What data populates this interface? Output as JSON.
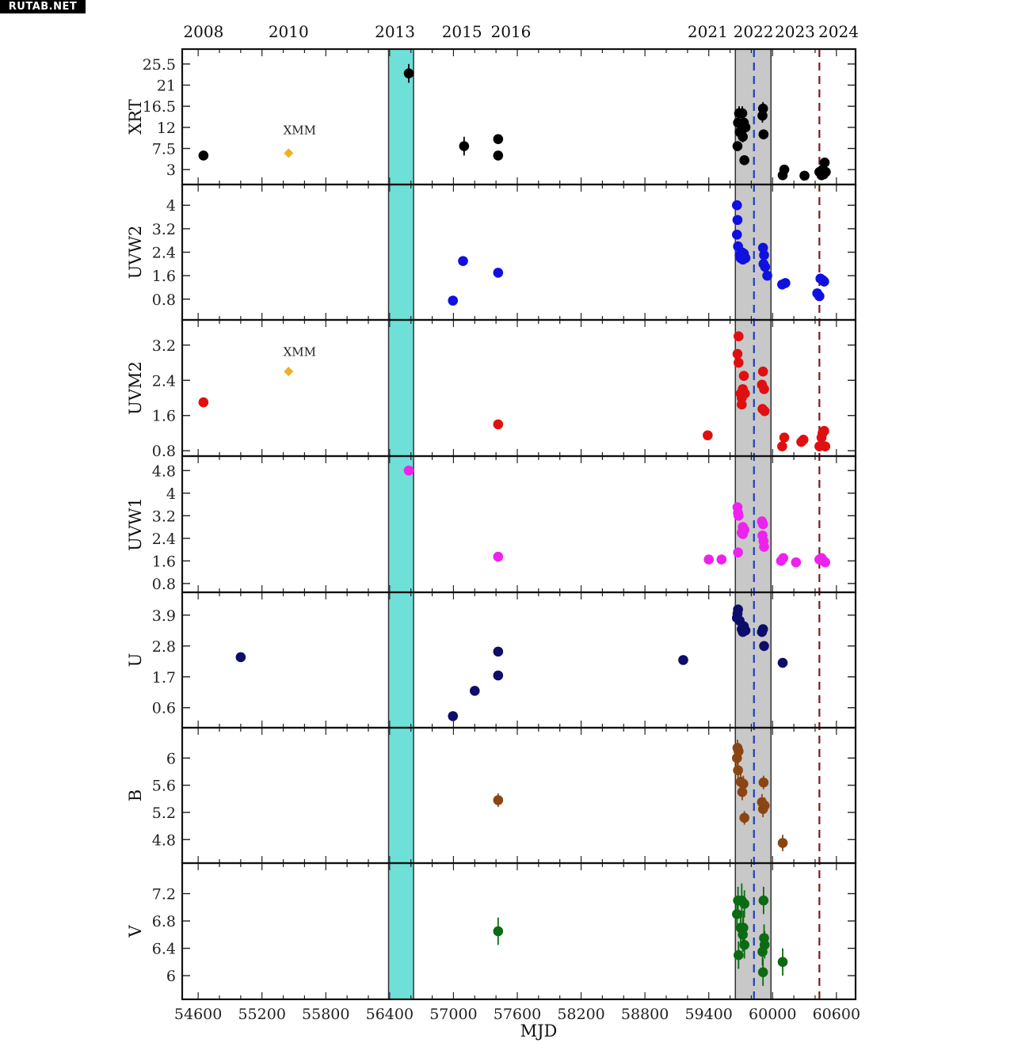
{
  "watermark": "RUTAB.NET",
  "chart_data": {
    "type": "scatter",
    "xlabel": "MJD",
    "xlim": [
      54450,
      60780
    ],
    "x_ticks": [
      54600,
      55200,
      55800,
      56400,
      57000,
      57600,
      58200,
      58800,
      59400,
      60000,
      60600
    ],
    "year_labels": [
      {
        "label": "2008",
        "mjd": 54650
      },
      {
        "label": "2010",
        "mjd": 55450
      },
      {
        "label": "2013",
        "mjd": 56450
      },
      {
        "label": "2015",
        "mjd": 57080
      },
      {
        "label": "2016",
        "mjd": 57540
      },
      {
        "label": "2021",
        "mjd": 59390
      },
      {
        "label": "2022",
        "mjd": 59820
      },
      {
        "label": "2023",
        "mjd": 60210
      },
      {
        "label": "2024",
        "mjd": 60620
      }
    ],
    "shaded_regions": [
      {
        "x0": 56390,
        "x1": 56625,
        "color": "#6ee0d8"
      },
      {
        "x0": 59650,
        "x1": 59985,
        "color": "#c8c8c8"
      }
    ],
    "vertical_lines": [
      {
        "x": 59825,
        "color": "#1f3fbf",
        "style": "dashed"
      },
      {
        "x": 60440,
        "color": "#7a1b1b",
        "style": "dashed"
      }
    ],
    "panels": [
      {
        "label": "XRT",
        "color": "#000000",
        "ylim": [
          0.5,
          28
        ],
        "yticks": [
          3,
          7.5,
          12,
          16.5,
          21,
          25.5
        ],
        "annotations": [
          {
            "text": "XMM",
            "x": 55450,
            "y": 10.5
          }
        ],
        "points": [
          {
            "x": 54650,
            "y": 6.0
          },
          {
            "x": 57100,
            "y": 8.0,
            "err": 2.0
          },
          {
            "x": 57420,
            "y": 9.5,
            "err": 1.0
          },
          {
            "x": 57420,
            "y": 6.0,
            "err": 0.7
          },
          {
            "x": 56580,
            "y": 23.5,
            "err": 2.0
          },
          {
            "x": 59670,
            "y": 8.0,
            "err": 1.0
          },
          {
            "x": 59675,
            "y": 13.0,
            "err": 1.3
          },
          {
            "x": 59685,
            "y": 15.0,
            "err": 1.5
          },
          {
            "x": 59690,
            "y": 11.0,
            "err": 1.2
          },
          {
            "x": 59705,
            "y": 12.5,
            "err": 1.3
          },
          {
            "x": 59715,
            "y": 15.0,
            "err": 1.5
          },
          {
            "x": 59720,
            "y": 10.0,
            "err": 1.2
          },
          {
            "x": 59730,
            "y": 13.0,
            "err": 1.4
          },
          {
            "x": 59735,
            "y": 5.0,
            "err": 1.0
          },
          {
            "x": 59745,
            "y": 12.0,
            "err": 1.3
          },
          {
            "x": 59905,
            "y": 14.5,
            "err": 1.5
          },
          {
            "x": 59910,
            "y": 16.0,
            "err": 1.4
          },
          {
            "x": 59915,
            "y": 10.5,
            "err": 1.0
          },
          {
            "x": 60095,
            "y": 1.8,
            "err": 0.4
          },
          {
            "x": 60110,
            "y": 3.0,
            "err": 0.5
          },
          {
            "x": 60300,
            "y": 1.7,
            "err": 0.3
          },
          {
            "x": 60440,
            "y": 2.5,
            "err": 0.6
          },
          {
            "x": 60460,
            "y": 1.8,
            "err": 0.4
          },
          {
            "x": 60470,
            "y": 3.0,
            "err": 0.5
          },
          {
            "x": 60480,
            "y": 2.0,
            "err": 0.4
          },
          {
            "x": 60490,
            "y": 4.5,
            "err": 0.6
          },
          {
            "x": 60500,
            "y": 2.5,
            "err": 0.5
          }
        ],
        "extra_points": [
          {
            "x": 55450,
            "y": 6.5,
            "color": "#f0b020",
            "marker": "diamond"
          }
        ]
      },
      {
        "label": "UVW2",
        "color": "#1010e0",
        "ylim": [
          0.2,
          4.6
        ],
        "yticks": [
          0.8,
          1.6,
          2.4,
          3.2,
          4
        ],
        "points": [
          {
            "x": 56995,
            "y": 0.75
          },
          {
            "x": 57090,
            "y": 2.1
          },
          {
            "x": 57420,
            "y": 1.7
          },
          {
            "x": 59665,
            "y": 4.0
          },
          {
            "x": 59670,
            "y": 3.5
          },
          {
            "x": 59665,
            "y": 3.0
          },
          {
            "x": 59675,
            "y": 2.6
          },
          {
            "x": 59690,
            "y": 2.3
          },
          {
            "x": 59700,
            "y": 2.2
          },
          {
            "x": 59710,
            "y": 2.4
          },
          {
            "x": 59720,
            "y": 2.15
          },
          {
            "x": 59730,
            "y": 2.35
          },
          {
            "x": 59745,
            "y": 2.2
          },
          {
            "x": 59910,
            "y": 2.55
          },
          {
            "x": 59915,
            "y": 2.0
          },
          {
            "x": 59920,
            "y": 2.3
          },
          {
            "x": 59930,
            "y": 1.9
          },
          {
            "x": 59950,
            "y": 1.6
          },
          {
            "x": 60090,
            "y": 1.3
          },
          {
            "x": 60120,
            "y": 1.35
          },
          {
            "x": 60420,
            "y": 1.0
          },
          {
            "x": 60440,
            "y": 0.9
          },
          {
            "x": 60450,
            "y": 1.5
          },
          {
            "x": 60470,
            "y": 1.45
          },
          {
            "x": 60485,
            "y": 1.4
          }
        ]
      },
      {
        "label": "UVM2",
        "color": "#e01010",
        "ylim": [
          0.75,
          3.7
        ],
        "yticks": [
          0.8,
          1.6,
          2.4,
          3.2
        ],
        "annotations": [
          {
            "text": "XMM",
            "x": 55450,
            "y": 2.95
          }
        ],
        "points": [
          {
            "x": 54650,
            "y": 1.9
          },
          {
            "x": 57420,
            "y": 1.4
          },
          {
            "x": 59390,
            "y": 1.15
          },
          {
            "x": 59680,
            "y": 3.4
          },
          {
            "x": 59670,
            "y": 3.0
          },
          {
            "x": 59680,
            "y": 2.8
          },
          {
            "x": 59700,
            "y": 2.1
          },
          {
            "x": 59710,
            "y": 2.0
          },
          {
            "x": 59720,
            "y": 2.2
          },
          {
            "x": 59730,
            "y": 2.5
          },
          {
            "x": 59740,
            "y": 2.1
          },
          {
            "x": 59710,
            "y": 1.85
          },
          {
            "x": 59900,
            "y": 2.3
          },
          {
            "x": 59910,
            "y": 2.6
          },
          {
            "x": 59920,
            "y": 2.2
          },
          {
            "x": 59905,
            "y": 1.75
          },
          {
            "x": 59925,
            "y": 1.7
          },
          {
            "x": 60090,
            "y": 0.9
          },
          {
            "x": 60110,
            "y": 1.1
          },
          {
            "x": 60270,
            "y": 1.0
          },
          {
            "x": 60290,
            "y": 1.05
          },
          {
            "x": 60440,
            "y": 0.9
          },
          {
            "x": 60460,
            "y": 1.1
          },
          {
            "x": 60470,
            "y": 1.2
          },
          {
            "x": 60485,
            "y": 1.25
          },
          {
            "x": 60495,
            "y": 0.9
          }
        ],
        "extra_points": [
          {
            "x": 55450,
            "y": 2.6,
            "color": "#f0b020",
            "marker": "diamond"
          }
        ]
      },
      {
        "label": "UVW1",
        "color": "#ee22ee",
        "ylim": [
          0.6,
          5.2
        ],
        "yticks": [
          0.8,
          1.6,
          2.4,
          3.2,
          4,
          4.8
        ],
        "points": [
          {
            "x": 56580,
            "y": 4.8
          },
          {
            "x": 57420,
            "y": 1.75
          },
          {
            "x": 59400,
            "y": 1.65
          },
          {
            "x": 59520,
            "y": 1.65
          },
          {
            "x": 59670,
            "y": 3.5
          },
          {
            "x": 59675,
            "y": 3.3
          },
          {
            "x": 59680,
            "y": 3.2
          },
          {
            "x": 59675,
            "y": 1.9
          },
          {
            "x": 59710,
            "y": 2.6
          },
          {
            "x": 59720,
            "y": 2.8
          },
          {
            "x": 59735,
            "y": 2.7
          },
          {
            "x": 59720,
            "y": 2.55
          },
          {
            "x": 59900,
            "y": 3.0
          },
          {
            "x": 59905,
            "y": 2.5
          },
          {
            "x": 59915,
            "y": 2.3
          },
          {
            "x": 59910,
            "y": 2.9
          },
          {
            "x": 59920,
            "y": 2.1
          },
          {
            "x": 60080,
            "y": 1.6
          },
          {
            "x": 60100,
            "y": 1.7
          },
          {
            "x": 60220,
            "y": 1.55
          },
          {
            "x": 60440,
            "y": 1.65
          },
          {
            "x": 60460,
            "y": 1.7
          },
          {
            "x": 60480,
            "y": 1.6
          },
          {
            "x": 60495,
            "y": 1.55
          }
        ]
      },
      {
        "label": "U",
        "color": "#0d0d6b",
        "ylim": [
          0.0,
          4.6
        ],
        "yticks": [
          0.6,
          1.7,
          2.8,
          3.9
        ],
        "points": [
          {
            "x": 55000,
            "y": 2.4
          },
          {
            "x": 56995,
            "y": 0.3
          },
          {
            "x": 57200,
            "y": 1.2
          },
          {
            "x": 57420,
            "y": 1.75
          },
          {
            "x": 57420,
            "y": 2.6
          },
          {
            "x": 59160,
            "y": 2.3
          },
          {
            "x": 59665,
            "y": 3.8
          },
          {
            "x": 59670,
            "y": 3.95
          },
          {
            "x": 59675,
            "y": 4.1
          },
          {
            "x": 59690,
            "y": 3.7
          },
          {
            "x": 59710,
            "y": 3.4
          },
          {
            "x": 59720,
            "y": 3.3
          },
          {
            "x": 59730,
            "y": 3.5
          },
          {
            "x": 59745,
            "y": 3.35
          },
          {
            "x": 59900,
            "y": 3.3
          },
          {
            "x": 59910,
            "y": 3.4
          },
          {
            "x": 59920,
            "y": 2.8
          },
          {
            "x": 60095,
            "y": 2.2
          }
        ]
      },
      {
        "label": "B",
        "color": "#8b4513",
        "ylim": [
          4.5,
          6.4
        ],
        "yticks": [
          4.8,
          5.2,
          5.6,
          6
        ],
        "points": [
          {
            "x": 57420,
            "y": 5.38,
            "err": 0.1
          },
          {
            "x": 59665,
            "y": 6.0,
            "err": 0.12
          },
          {
            "x": 59670,
            "y": 6.15,
            "err": 0.12
          },
          {
            "x": 59680,
            "y": 6.1,
            "err": 0.12
          },
          {
            "x": 59675,
            "y": 5.82,
            "err": 0.12
          },
          {
            "x": 59700,
            "y": 5.65,
            "err": 0.12
          },
          {
            "x": 59715,
            "y": 5.5,
            "err": 0.12
          },
          {
            "x": 59725,
            "y": 5.62,
            "err": 0.12
          },
          {
            "x": 59735,
            "y": 5.12,
            "err": 0.1
          },
          {
            "x": 59900,
            "y": 5.35,
            "err": 0.12
          },
          {
            "x": 59910,
            "y": 5.25,
            "err": 0.12
          },
          {
            "x": 59915,
            "y": 5.64,
            "err": 0.1
          },
          {
            "x": 59925,
            "y": 5.3,
            "err": 0.12
          },
          {
            "x": 60095,
            "y": 4.75,
            "err": 0.12
          }
        ]
      },
      {
        "label": "V",
        "color": "#0b6b12",
        "ylim": [
          5.7,
          7.6
        ],
        "yticks": [
          6,
          6.4,
          6.8,
          7.2
        ],
        "points": [
          {
            "x": 57420,
            "y": 6.65,
            "err": 0.2
          },
          {
            "x": 59665,
            "y": 6.9,
            "err": 0.2
          },
          {
            "x": 59675,
            "y": 7.1,
            "err": 0.2
          },
          {
            "x": 59680,
            "y": 6.3,
            "err": 0.2
          },
          {
            "x": 59700,
            "y": 6.7,
            "err": 0.25
          },
          {
            "x": 59710,
            "y": 7.1,
            "err": 0.25
          },
          {
            "x": 59720,
            "y": 6.6,
            "err": 0.25
          },
          {
            "x": 59725,
            "y": 6.7,
            "err": 0.25
          },
          {
            "x": 59735,
            "y": 6.45,
            "err": 0.2
          },
          {
            "x": 59735,
            "y": 7.05,
            "err": 0.2
          },
          {
            "x": 59905,
            "y": 6.35,
            "err": 0.2
          },
          {
            "x": 59910,
            "y": 6.05,
            "err": 0.2
          },
          {
            "x": 59915,
            "y": 7.1,
            "err": 0.2
          },
          {
            "x": 59920,
            "y": 6.55,
            "err": 0.2
          },
          {
            "x": 59925,
            "y": 6.45,
            "err": 0.2
          },
          {
            "x": 60095,
            "y": 6.2,
            "err": 0.2
          }
        ]
      }
    ]
  }
}
